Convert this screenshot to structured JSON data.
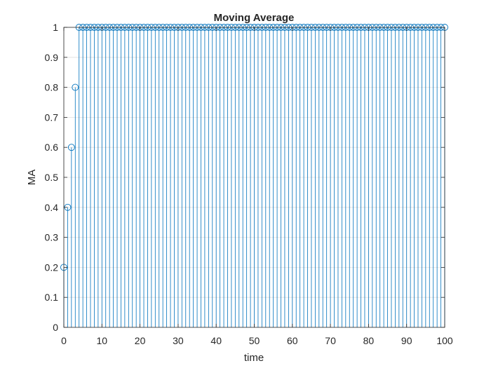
{
  "chart_data": {
    "type": "stem",
    "title": "Moving Average",
    "xlabel": "time",
    "ylabel": "MA",
    "xlim": [
      0,
      100
    ],
    "ylim": [
      0,
      1
    ],
    "xticks": [
      0,
      10,
      20,
      30,
      40,
      50,
      60,
      70,
      80,
      90,
      100
    ],
    "yticks": [
      0,
      0.1,
      0.2,
      0.3,
      0.4,
      0.5,
      0.6,
      0.7,
      0.8,
      0.9,
      1
    ],
    "xtick_labels": [
      "0",
      "10",
      "20",
      "30",
      "40",
      "50",
      "60",
      "70",
      "80",
      "90",
      "100"
    ],
    "ytick_labels": [
      "0",
      "0.1",
      "0.2",
      "0.3",
      "0.4",
      "0.5",
      "0.6",
      "0.7",
      "0.8",
      "0.9",
      "1"
    ],
    "grid": true,
    "marker": "circle",
    "color": "#0072BD",
    "series": [
      {
        "x": [
          0,
          1,
          2,
          3,
          4,
          5,
          6,
          7,
          8,
          9,
          10,
          11,
          12,
          13,
          14,
          15,
          16,
          17,
          18,
          19,
          20,
          21,
          22,
          23,
          24,
          25,
          26,
          27,
          28,
          29,
          30,
          31,
          32,
          33,
          34,
          35,
          36,
          37,
          38,
          39,
          40,
          41,
          42,
          43,
          44,
          45,
          46,
          47,
          48,
          49,
          50,
          51,
          52,
          53,
          54,
          55,
          56,
          57,
          58,
          59,
          60,
          61,
          62,
          63,
          64,
          65,
          66,
          67,
          68,
          69,
          70,
          71,
          72,
          73,
          74,
          75,
          76,
          77,
          78,
          79,
          80,
          81,
          82,
          83,
          84,
          85,
          86,
          87,
          88,
          89,
          90,
          91,
          92,
          93,
          94,
          95,
          96,
          97,
          98,
          99,
          100
        ],
        "y": [
          0.2,
          0.4,
          0.6,
          0.8,
          1,
          1,
          1,
          1,
          1,
          1,
          1,
          1,
          1,
          1,
          1,
          1,
          1,
          1,
          1,
          1,
          1,
          1,
          1,
          1,
          1,
          1,
          1,
          1,
          1,
          1,
          1,
          1,
          1,
          1,
          1,
          1,
          1,
          1,
          1,
          1,
          1,
          1,
          1,
          1,
          1,
          1,
          1,
          1,
          1,
          1,
          1,
          1,
          1,
          1,
          1,
          1,
          1,
          1,
          1,
          1,
          1,
          1,
          1,
          1,
          1,
          1,
          1,
          1,
          1,
          1,
          1,
          1,
          1,
          1,
          1,
          1,
          1,
          1,
          1,
          1,
          1,
          1,
          1,
          1,
          1,
          1,
          1,
          1,
          1,
          1,
          1,
          1,
          1,
          1,
          1,
          1,
          1,
          1,
          1,
          1,
          1
        ]
      }
    ]
  }
}
